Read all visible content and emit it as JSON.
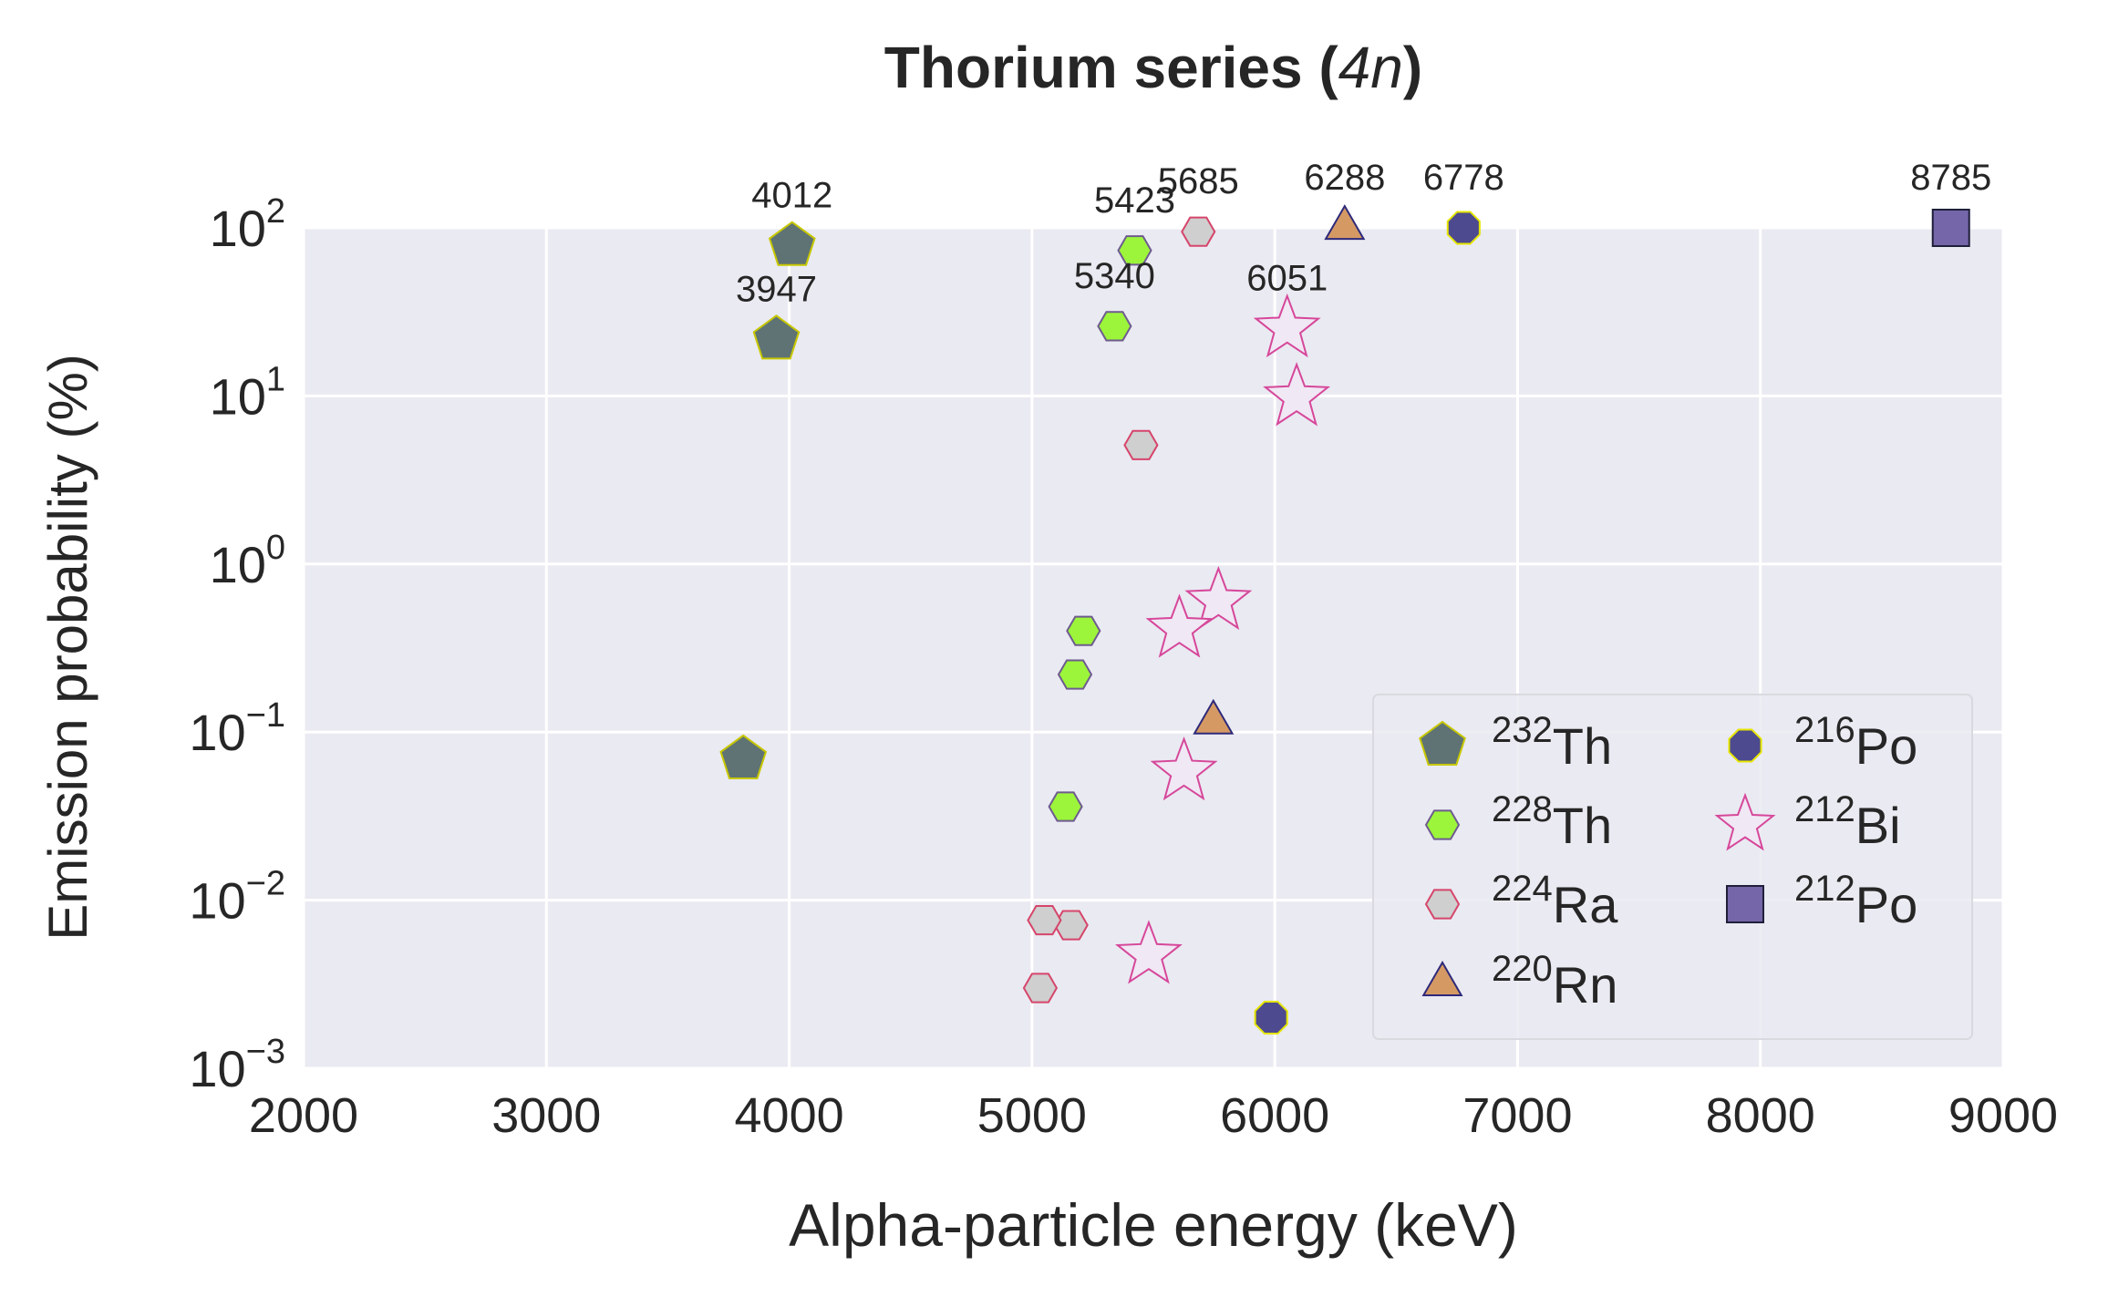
{
  "chart_data": {
    "type": "scatter",
    "title": {
      "main": "Thorium series (",
      "italic": "4n",
      "close": ")"
    },
    "xlabel": "Alpha-particle energy (keV)",
    "ylabel": "Emission probability (%)",
    "xlim": [
      2000,
      9000
    ],
    "ylim": [
      0.001,
      100
    ],
    "yscale": "log",
    "grid": true,
    "background_color": "#eaeaf2",
    "x_ticks": [
      "2000",
      "3000",
      "4000",
      "5000",
      "6000",
      "7000",
      "8000",
      "9000"
    ],
    "y_ticks": [
      {
        "base": "10",
        "exp": "−3",
        "value": 0.001
      },
      {
        "base": "10",
        "exp": "−2",
        "value": 0.01
      },
      {
        "base": "10",
        "exp": "−1",
        "value": 0.1
      },
      {
        "base": "10",
        "exp": "0",
        "value": 1
      },
      {
        "base": "10",
        "exp": "1",
        "value": 10
      },
      {
        "base": "10",
        "exp": "2",
        "value": 100
      }
    ],
    "legend_position": "lower-right",
    "series": [
      {
        "mass": "232",
        "element": "Th",
        "marker": "pentagon",
        "fill": "#5f7374",
        "edge": "#c8c800",
        "points": [
          {
            "x": 4012,
            "y": 78.2
          },
          {
            "x": 3947,
            "y": 21.7
          },
          {
            "x": 3811,
            "y": 0.069
          }
        ]
      },
      {
        "mass": "228",
        "element": "Th",
        "marker": "hexagon",
        "fill": "#9cf53a",
        "edge": "#6e5b8f",
        "points": [
          {
            "x": 5423,
            "y": 73.4
          },
          {
            "x": 5340,
            "y": 26.0
          },
          {
            "x": 5212,
            "y": 0.4
          },
          {
            "x": 5177,
            "y": 0.22
          },
          {
            "x": 5138,
            "y": 0.036
          }
        ]
      },
      {
        "mass": "224",
        "element": "Ra",
        "marker": "hexagon",
        "fill": "#cfcfcf",
        "edge": "#d6456b",
        "points": [
          {
            "x": 5685,
            "y": 94.9
          },
          {
            "x": 5449,
            "y": 5.1
          },
          {
            "x": 5161,
            "y": 0.0071
          },
          {
            "x": 5051,
            "y": 0.0076
          },
          {
            "x": 5034,
            "y": 0.003
          }
        ]
      },
      {
        "mass": "220",
        "element": "Rn",
        "marker": "triangle",
        "fill": "#d59a64",
        "edge": "#2e2a7a",
        "points": [
          {
            "x": 6288,
            "y": 99.9
          },
          {
            "x": 5747,
            "y": 0.114
          }
        ]
      },
      {
        "mass": "216",
        "element": "Po",
        "marker": "octagon",
        "fill": "#4d4a8f",
        "edge": "#e6e600",
        "points": [
          {
            "x": 6778,
            "y": 99.998
          },
          {
            "x": 5985,
            "y": 0.002
          }
        ]
      },
      {
        "mass": "212",
        "element": "Bi",
        "marker": "star",
        "fill": "#f0e8f4",
        "edge": "#d6479a",
        "points": [
          {
            "x": 6051,
            "y": 25.1
          },
          {
            "x": 6090,
            "y": 9.8
          },
          {
            "x": 5768,
            "y": 0.6
          },
          {
            "x": 5607,
            "y": 0.41
          },
          {
            "x": 5626,
            "y": 0.058
          },
          {
            "x": 5481,
            "y": 0.0047
          }
        ]
      },
      {
        "mass": "212",
        "element": "Po",
        "marker": "square",
        "fill": "#7466a8",
        "edge": "#1f1f3a",
        "points": [
          {
            "x": 8785,
            "y": 100
          }
        ]
      }
    ],
    "annotations": [
      {
        "text": "4012",
        "x": 4012,
        "y": 78.2
      },
      {
        "text": "3947",
        "x": 3947,
        "y": 21.7
      },
      {
        "text": "5423",
        "x": 5423,
        "y": 73.4
      },
      {
        "text": "5340",
        "x": 5340,
        "y": 26.0
      },
      {
        "text": "5685",
        "x": 5685,
        "y": 94.9
      },
      {
        "text": "6051",
        "x": 6051,
        "y": 25.1
      },
      {
        "text": "6288",
        "x": 6288,
        "y": 99.9
      },
      {
        "text": "6778",
        "x": 6778,
        "y": 99.998
      },
      {
        "text": "8785",
        "x": 8785,
        "y": 100
      }
    ]
  }
}
